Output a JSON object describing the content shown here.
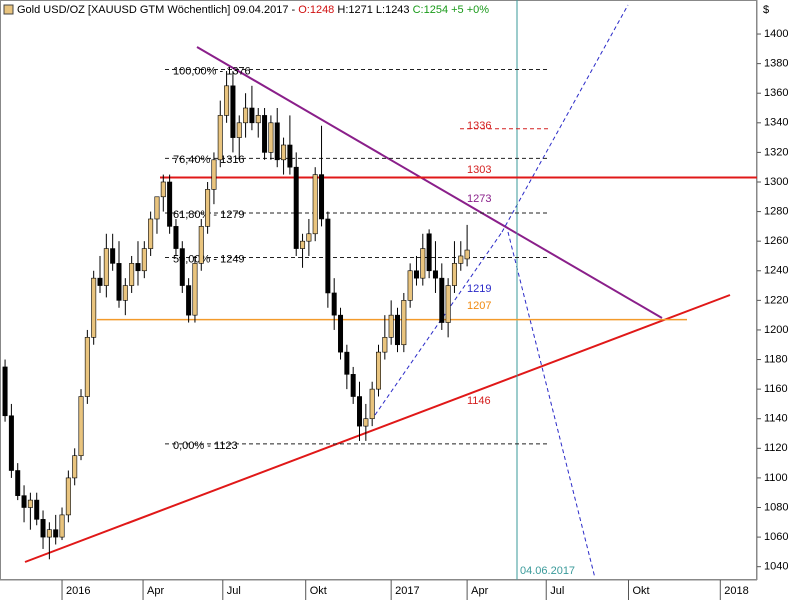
{
  "chart_data": {
    "type": "candlestick",
    "title": "Gold USD/OZ [XAUUSD GTM  Wöchentlich] 09.04.2017 -",
    "title_open": "O:1248",
    "title_range": "H:1271 L:1243",
    "title_change": "C:1254 +5 +0%",
    "y_axis_label": "$",
    "up_color": "#e9c47e",
    "down_color": "#000000",
    "ylim": [
      1031,
      1423
    ],
    "yticks": [
      1040,
      1060,
      1080,
      1100,
      1120,
      1140,
      1160,
      1180,
      1200,
      1220,
      1240,
      1260,
      1280,
      1300,
      1320,
      1340,
      1360,
      1380,
      1400
    ],
    "xlim": [
      -0.8,
      118.8
    ],
    "xticks": [
      {
        "value": 9,
        "label": "2016"
      },
      {
        "value": 21.8,
        "label": "Apr"
      },
      {
        "value": 34.4,
        "label": "Jul"
      },
      {
        "value": 47.5,
        "label": "Okt"
      },
      {
        "value": 61,
        "label": "2017"
      },
      {
        "value": 73,
        "label": "Apr"
      },
      {
        "value": 85.5,
        "label": "Jul"
      },
      {
        "value": 98.5,
        "label": "Okt"
      },
      {
        "value": 113,
        "label": "2018"
      }
    ],
    "open": [
      1175,
      1142,
      1105,
      1088,
      1080,
      1085,
      1072,
      1060,
      1065,
      1060,
      1075,
      1100,
      1115,
      1155,
      1195,
      1235,
      1230,
      1255,
      1245,
      1220,
      1230,
      1245,
      1240,
      1255,
      1275,
      1290,
      1300,
      1270,
      1255,
      1230,
      1210,
      1245,
      1270,
      1295,
      1315,
      1345,
      1365,
      1330,
      1340,
      1350,
      1340,
      1345,
      1320,
      1340,
      1315,
      1325,
      1310,
      1255,
      1260,
      1265,
      1305,
      1275,
      1225,
      1210,
      1185,
      1170,
      1155,
      1135,
      1140,
      1160,
      1185,
      1195,
      1210,
      1190,
      1220,
      1240,
      1235,
      1265,
      1240,
      1235,
      1205,
      1230,
      1245,
      1248
    ],
    "high": [
      1180,
      1150,
      1110,
      1095,
      1090,
      1090,
      1078,
      1070,
      1075,
      1080,
      1105,
      1120,
      1160,
      1200,
      1240,
      1250,
      1265,
      1265,
      1260,
      1235,
      1250,
      1260,
      1260,
      1280,
      1290,
      1305,
      1305,
      1275,
      1260,
      1235,
      1250,
      1275,
      1300,
      1320,
      1355,
      1375,
      1375,
      1345,
      1360,
      1365,
      1350,
      1350,
      1345,
      1350,
      1330,
      1345,
      1320,
      1265,
      1275,
      1310,
      1338,
      1280,
      1235,
      1215,
      1190,
      1175,
      1165,
      1150,
      1165,
      1190,
      1210,
      1220,
      1215,
      1225,
      1245,
      1250,
      1265,
      1268,
      1260,
      1245,
      1235,
      1260,
      1260,
      1271
    ],
    "low": [
      1138,
      1100,
      1085,
      1070,
      1065,
      1068,
      1052,
      1045,
      1055,
      1058,
      1070,
      1095,
      1112,
      1150,
      1190,
      1225,
      1222,
      1240,
      1215,
      1210,
      1225,
      1230,
      1235,
      1250,
      1265,
      1280,
      1265,
      1250,
      1225,
      1205,
      1205,
      1240,
      1265,
      1285,
      1310,
      1340,
      1320,
      1315,
      1330,
      1335,
      1330,
      1315,
      1315,
      1310,
      1305,
      1305,
      1250,
      1242,
      1250,
      1260,
      1270,
      1215,
      1200,
      1180,
      1160,
      1150,
      1125,
      1125,
      1135,
      1155,
      1180,
      1190,
      1185,
      1185,
      1215,
      1230,
      1230,
      1235,
      1225,
      1200,
      1195,
      1225,
      1240,
      1243
    ],
    "close": [
      1142,
      1105,
      1088,
      1080,
      1085,
      1072,
      1060,
      1065,
      1060,
      1075,
      1100,
      1115,
      1155,
      1195,
      1235,
      1230,
      1255,
      1245,
      1220,
      1230,
      1245,
      1240,
      1255,
      1275,
      1290,
      1300,
      1270,
      1255,
      1230,
      1210,
      1245,
      1270,
      1295,
      1315,
      1345,
      1365,
      1330,
      1340,
      1350,
      1340,
      1345,
      1320,
      1340,
      1315,
      1325,
      1310,
      1255,
      1260,
      1265,
      1305,
      1275,
      1225,
      1210,
      1185,
      1170,
      1155,
      1135,
      1140,
      1160,
      1185,
      1195,
      1210,
      1190,
      1220,
      1240,
      1235,
      1255,
      1240,
      1235,
      1205,
      1230,
      1245,
      1250,
      1254
    ],
    "levels": [
      {
        "value": 1376,
        "label": "100,00% - 1376"
      },
      {
        "value": 1316,
        "label": "76,40% - 1316"
      },
      {
        "value": 1279,
        "label": "61,80% - 1279"
      },
      {
        "value": 1249,
        "label": "50,00% - 1249"
      },
      {
        "value": 1123,
        "label": "0,00% - 1123"
      }
    ],
    "lines": [
      {
        "value": 1336,
        "color": "#d42020"
      },
      {
        "value": 1303,
        "color": "#e01818"
      },
      {
        "value": 1207,
        "color": "#f39a2a"
      }
    ],
    "annotations": [
      {
        "text": "1336",
        "color": "#d42020"
      },
      {
        "text": "1303",
        "color": "#d42020"
      },
      {
        "text": "1273",
        "color": "#8a1f8a"
      },
      {
        "text": "1219",
        "color": "#2a2ac8"
      },
      {
        "text": "1207",
        "color": "#f08a10"
      },
      {
        "text": "1146",
        "color": "#d42020"
      }
    ],
    "date_marker": "04.06.2017"
  }
}
